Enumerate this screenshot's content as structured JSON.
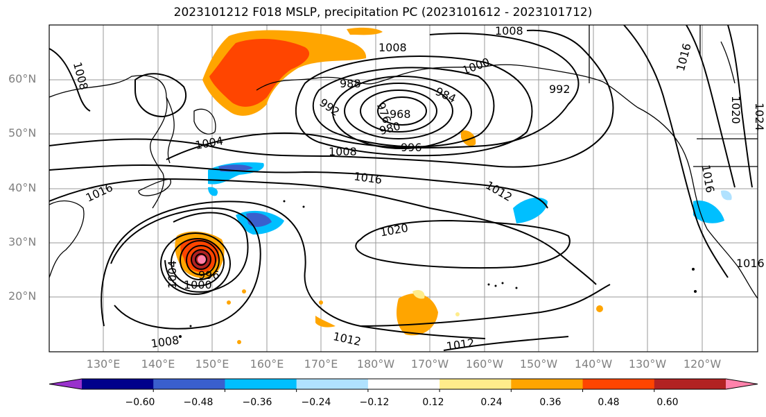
{
  "title": "2023101212 F018 MSLP, precipitation PC (2023101612 - 2023101712)",
  "lat_labels": [
    "60°N",
    "50°N",
    "40°N",
    "30°N",
    "20°N"
  ],
  "lon_labels": [
    "130°E",
    "140°E",
    "150°E",
    "160°E",
    "170°E",
    "180°W",
    "170°W",
    "160°W",
    "150°W",
    "140°W",
    "130°W",
    "120°W"
  ],
  "colorbar": {
    "ticks": [
      "−0.60",
      "−0.48",
      "−0.36",
      "−0.24",
      "−0.12",
      "0.12",
      "0.24",
      "0.36",
      "0.48",
      "0.60"
    ],
    "colors": [
      "#9932cc",
      "#00008b",
      "#3a5fcd",
      "#00bfff",
      "#b0e2ff",
      "#ffffff",
      "#ffec8b",
      "#ffa500",
      "#ff4500",
      "#b22222",
      "#ff82ab"
    ]
  },
  "isobar_labels": [
    "1008",
    "1008",
    "1008",
    "1000",
    "992",
    "988",
    "992",
    "984",
    "976",
    "968",
    "980",
    "996",
    "1004",
    "1008",
    "1016",
    "1016",
    "1012",
    "1020",
    "1004",
    "1000",
    "996",
    "1008",
    "1012",
    "1012",
    "1016",
    "1020",
    "1024",
    "1016",
    "1016"
  ]
}
